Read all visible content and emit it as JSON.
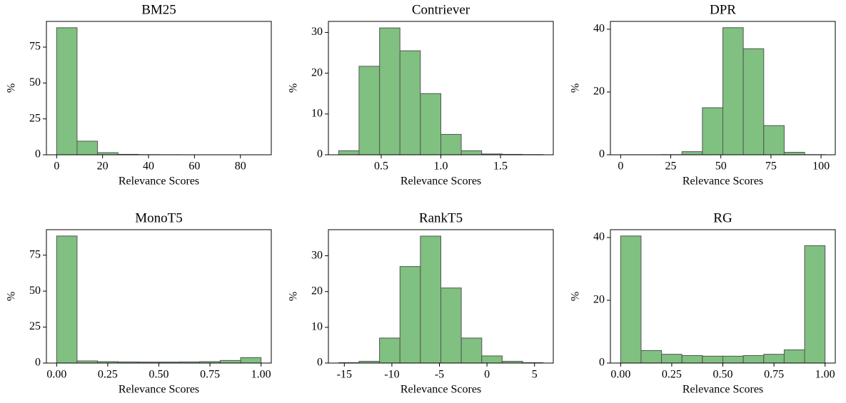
{
  "chart_data": [
    {
      "type": "histogram",
      "title": "BM25",
      "xlabel": "Relevance Scores",
      "ylabel": "%",
      "color": "#80c080",
      "bins": [
        0,
        8.9,
        17.8,
        26.7,
        35.6,
        44.5,
        53.4,
        62.3,
        71.2,
        80.1,
        89
      ],
      "values": [
        88.5,
        9.5,
        1.5,
        0.3,
        0.1,
        0.05,
        0.02,
        0.01,
        0.01,
        0.01
      ],
      "xlim": [
        -4.45,
        93.45
      ],
      "ylim": [
        0,
        92.9
      ],
      "xticks": [
        0,
        20,
        40,
        60,
        80
      ],
      "yticks": [
        0,
        25,
        50,
        75
      ]
    },
    {
      "type": "histogram",
      "title": "Contriever",
      "xlabel": "Relevance Scores",
      "ylabel": "%",
      "color": "#80c080",
      "bins": [
        0.143,
        0.314,
        0.486,
        0.657,
        0.828,
        1.0,
        1.171,
        1.342,
        1.514,
        1.685,
        1.857
      ],
      "values": [
        1,
        21.7,
        31.1,
        25.5,
        15,
        5,
        1,
        0.2,
        0.1,
        0.05
      ],
      "xlim": [
        0.057,
        1.943
      ],
      "ylim": [
        0,
        32.7
      ],
      "xticks": [
        0.5,
        {
          "value": 1,
          "label": "1.0"
        },
        1.5
      ],
      "yticks": [
        0,
        10,
        20,
        30
      ]
    },
    {
      "type": "histogram",
      "title": "DPR",
      "xlabel": "Relevance Scores",
      "ylabel": "%",
      "color": "#80c080",
      "bins": [
        0,
        10.2,
        20.4,
        30.6,
        40.8,
        51,
        61.2,
        71.4,
        81.6,
        91.8,
        102
      ],
      "values": [
        0.02,
        0.02,
        0.05,
        1,
        15,
        40.5,
        33.8,
        9.3,
        0.8,
        0.05
      ],
      "xlim": [
        -5.1,
        107.1
      ],
      "ylim": [
        0,
        42.5
      ],
      "xticks": [
        0,
        25,
        50,
        75,
        100
      ],
      "yticks": [
        0,
        20,
        40
      ]
    },
    {
      "type": "histogram",
      "title": "MonoT5",
      "xlabel": "Relevance Scores",
      "ylabel": "%",
      "color": "#80c080",
      "bins": [
        0,
        0.1,
        0.2,
        0.3,
        0.4,
        0.5,
        0.6,
        0.7,
        0.8,
        0.9,
        1
      ],
      "values": [
        88.3,
        1.5,
        1,
        0.8,
        0.7,
        0.7,
        0.8,
        1,
        1.8,
        3.8
      ],
      "xlim": [
        -0.05,
        1.05
      ],
      "ylim": [
        0,
        92.7
      ],
      "xticks": [
        {
          "value": 0,
          "label": "0.00"
        },
        {
          "value": 0.25,
          "label": "0.25"
        },
        {
          "value": 0.5,
          "label": "0.50"
        },
        {
          "value": 0.75,
          "label": "0.75"
        },
        {
          "value": 1,
          "label": "1.00"
        }
      ],
      "yticks": [
        0,
        25,
        50,
        75
      ]
    },
    {
      "type": "histogram",
      "title": "RankT5",
      "xlabel": "Relevance Scores",
      "ylabel": "%",
      "color": "#80c080",
      "bins": [
        -15.6,
        -13.45,
        -11.3,
        -9.15,
        -7,
        -4.85,
        -2.7,
        -0.55,
        1.6,
        3.75,
        5.9
      ],
      "values": [
        0.1,
        0.5,
        7,
        27,
        35.5,
        21,
        7,
        2,
        0.5,
        0.1
      ],
      "xlim": [
        -16.675,
        6.975
      ],
      "ylim": [
        0,
        37.3
      ],
      "xticks": [
        -15,
        -10,
        -5,
        0,
        5
      ],
      "yticks": [
        0,
        10,
        20,
        30
      ]
    },
    {
      "type": "histogram",
      "title": "RG",
      "xlabel": "Relevance Scores",
      "ylabel": "%",
      "color": "#80c080",
      "bins": [
        0,
        0.1,
        0.2,
        0.3,
        0.4,
        0.5,
        0.6,
        0.7,
        0.8,
        0.9,
        1
      ],
      "values": [
        40.5,
        4,
        2.8,
        2.4,
        2.2,
        2.2,
        2.4,
        2.8,
        4.2,
        37.4
      ],
      "xlim": [
        -0.05,
        1.05
      ],
      "ylim": [
        0,
        42.5
      ],
      "xticks": [
        {
          "value": 0,
          "label": "0.00"
        },
        {
          "value": 0.25,
          "label": "0.25"
        },
        {
          "value": 0.5,
          "label": "0.50"
        },
        {
          "value": 0.75,
          "label": "0.75"
        },
        {
          "value": 1,
          "label": "1.00"
        }
      ],
      "yticks": [
        0,
        20,
        40
      ]
    }
  ]
}
